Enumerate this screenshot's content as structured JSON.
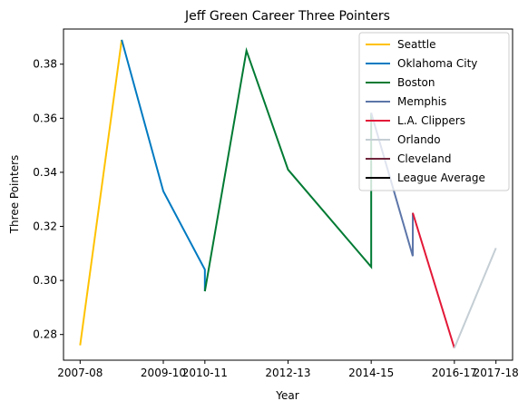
{
  "chart_data": {
    "type": "line",
    "title": "Jeff Green  Career Three Pointers",
    "xlabel": "Year",
    "ylabel": "Three Pointers",
    "x_tick_labels": [
      "2007-08",
      "2009-10",
      "2010-11",
      "2012-13",
      "2014-15",
      "2016-17",
      "2017-18"
    ],
    "y_ticks": [
      0.28,
      0.3,
      0.32,
      0.34,
      0.36,
      0.38
    ],
    "y_tick_labels": [
      "0.28",
      "0.30",
      "0.32",
      "0.34",
      "0.36",
      "0.38"
    ],
    "ylim": [
      0.2705,
      0.393
    ],
    "grid": false,
    "legend_position": "top-right",
    "legend_order": [
      "Seattle",
      "Oklahoma City",
      "Boston",
      "Memphis",
      "L.A. Clippers",
      "Orlando",
      "Cleveland",
      "League Average"
    ],
    "series": [
      {
        "name": "Seattle",
        "color": "#FFC200",
        "points": [
          [
            "2007-08",
            0.276
          ],
          [
            "2008-09",
            0.389
          ]
        ]
      },
      {
        "name": "Oklahoma City",
        "color": "#007AC1",
        "points": [
          [
            "2008-09",
            0.389
          ],
          [
            "2009-10",
            0.333
          ],
          [
            "2010-11",
            0.304
          ],
          [
            "2010-11",
            0.296
          ]
        ]
      },
      {
        "name": "Boston",
        "color": "#007A33",
        "points": [
          [
            "2010-11",
            0.296
          ],
          [
            "2011-12",
            0.385
          ],
          [
            "2012-13",
            0.341
          ],
          [
            "2014-15",
            0.305
          ],
          [
            "2014-15",
            0.362
          ]
        ]
      },
      {
        "name": "Memphis",
        "color": "#5D76A9",
        "points": [
          [
            "2014-15",
            0.362
          ],
          [
            "2015-16",
            0.309
          ],
          [
            "2015-16",
            0.325
          ]
        ]
      },
      {
        "name": "L.A. Clippers",
        "color": "#E31837",
        "points": [
          [
            "2015-16",
            0.325
          ],
          [
            "2016-17",
            0.275
          ]
        ]
      },
      {
        "name": "Orlando",
        "color": "#C4CED4",
        "points": [
          [
            "2016-17",
            0.275
          ],
          [
            "2017-18",
            0.312
          ]
        ]
      },
      {
        "name": "Cleveland",
        "color": "#6F263D",
        "points": []
      },
      {
        "name": "League Average",
        "color": "#000000",
        "points": []
      }
    ]
  }
}
